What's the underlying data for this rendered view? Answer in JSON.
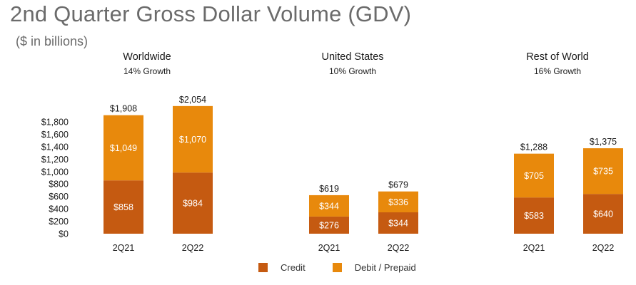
{
  "title": "2nd Quarter Gross Dollar Volume (GDV)",
  "subtitle": "($ in billions)",
  "colors": {
    "credit": "#C55A11",
    "debit_prepaid": "#E8890C",
    "text": "#1a1a1a"
  },
  "chart_data": {
    "type": "bar",
    "stacked": true,
    "title": "2nd Quarter Gross Dollar Volume (GDV)",
    "ylabel": "($ in billions)",
    "ylim": [
      0,
      1800
    ],
    "yticks": [
      "$0",
      "$200",
      "$400",
      "$600",
      "$800",
      "$1,000",
      "$1,200",
      "$1,400",
      "$1,600",
      "$1,800"
    ],
    "ytick_values": [
      0,
      200,
      400,
      600,
      800,
      1000,
      1200,
      1400,
      1600,
      1800
    ],
    "legend": [
      "Credit",
      "Debit / Prepaid"
    ],
    "groups": [
      {
        "name": "Worldwide",
        "growth": "14% Growth",
        "categories": [
          "2Q21",
          "2Q22"
        ],
        "credit": [
          858,
          984
        ],
        "debit_prepaid": [
          1049,
          1070
        ],
        "credit_labels": [
          "$858",
          "$984"
        ],
        "debit_labels": [
          "$1,049",
          "$1,070"
        ],
        "totals": [
          "$1,908",
          "$2,054"
        ]
      },
      {
        "name": "United States",
        "growth": "10% Growth",
        "categories": [
          "2Q21",
          "2Q22"
        ],
        "credit": [
          276,
          344
        ],
        "debit_prepaid": [
          344,
          336
        ],
        "credit_labels": [
          "$276",
          "$344"
        ],
        "debit_labels": [
          "$344",
          "$336"
        ],
        "totals": [
          "$619",
          "$679"
        ]
      },
      {
        "name": "Rest of World",
        "growth": "16% Growth",
        "categories": [
          "2Q21",
          "2Q22"
        ],
        "credit": [
          583,
          640
        ],
        "debit_prepaid": [
          705,
          735
        ],
        "credit_labels": [
          "$583",
          "$640"
        ],
        "debit_labels": [
          "$705",
          "$735"
        ],
        "totals": [
          "$1,288",
          "$1,375"
        ]
      }
    ]
  }
}
